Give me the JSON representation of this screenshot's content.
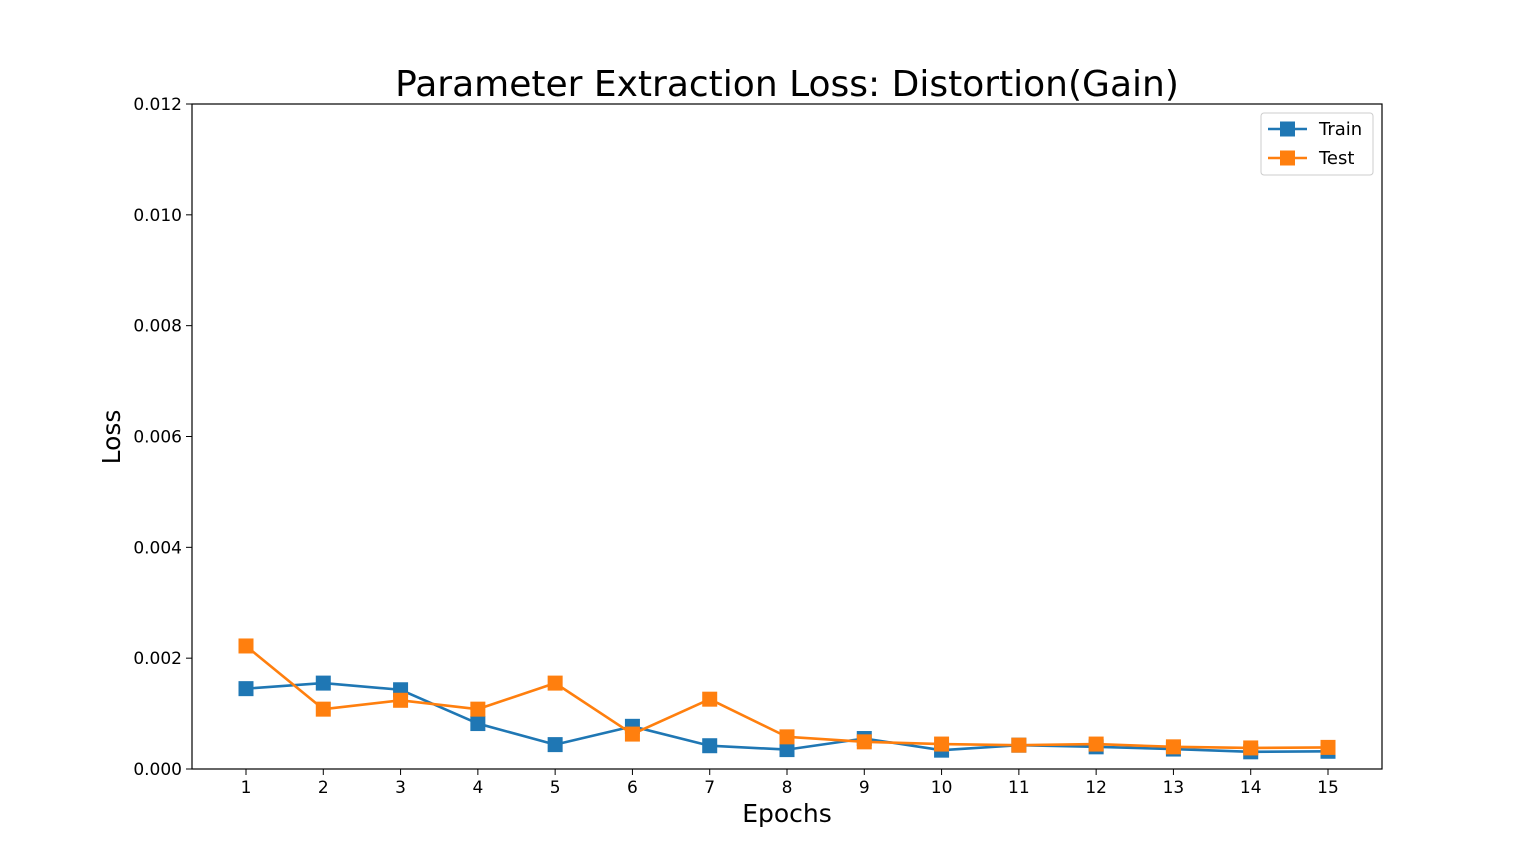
{
  "chart_data": {
    "type": "line",
    "title": "Parameter Extraction Loss: Distortion(Gain)",
    "xlabel": "Epochs",
    "ylabel": "Loss",
    "x": [
      1,
      2,
      3,
      4,
      5,
      6,
      7,
      8,
      9,
      10,
      11,
      12,
      13,
      14,
      15
    ],
    "xticks": [
      "1",
      "2",
      "3",
      "4",
      "5",
      "6",
      "7",
      "8",
      "9",
      "10",
      "11",
      "12",
      "13",
      "14",
      "15"
    ],
    "ylim": [
      0,
      0.012
    ],
    "yticks": [
      "0.000",
      "0.002",
      "0.004",
      "0.006",
      "0.008",
      "0.010",
      "0.012"
    ],
    "grid": false,
    "legend_position": "top-right",
    "marker": "square",
    "series": [
      {
        "name": "Train",
        "color": "#1f77b4",
        "values": [
          0.00145,
          0.00155,
          0.00143,
          0.00082,
          0.00044,
          0.00077,
          0.00042,
          0.00035,
          0.00055,
          0.00034,
          0.00043,
          0.0004,
          0.00036,
          0.00031,
          0.00032
        ]
      },
      {
        "name": "Test",
        "color": "#ff7f0e",
        "values": [
          0.00222,
          0.00108,
          0.00124,
          0.00108,
          0.00155,
          0.00063,
          0.00126,
          0.00058,
          0.00049,
          0.00045,
          0.00043,
          0.00045,
          0.0004,
          0.00038,
          0.00039
        ]
      }
    ]
  }
}
